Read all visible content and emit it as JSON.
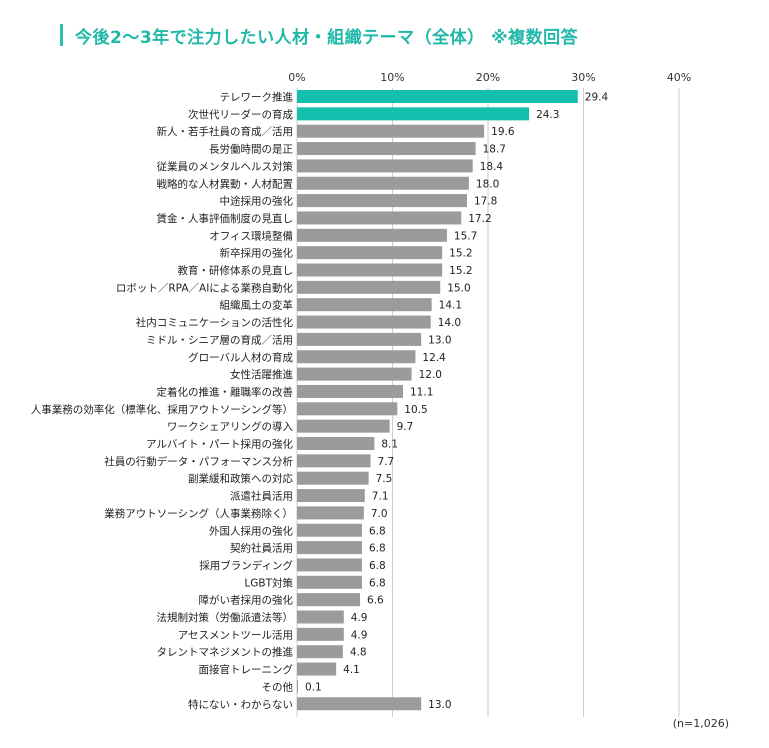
{
  "colors": {
    "title": "#20b8a8",
    "highlight": "#14bfae",
    "bar": "#9b9b9b",
    "grid": "#cccccc"
  },
  "title": "今後2～3年で注力したい人材・組織テーマ（全体） ※複数回答",
  "note": "(n=1,026)",
  "chart_data": {
    "type": "bar",
    "orientation": "horizontal",
    "xlim": [
      0,
      40
    ],
    "ticks": [
      0,
      10,
      20,
      30,
      40
    ],
    "tick_labels": [
      "0%",
      "10%",
      "20%",
      "30%",
      "40%"
    ],
    "grid": true,
    "categories": [
      "テレワーク推進",
      "次世代リーダーの育成",
      "新人・若手社員の育成／活用",
      "長労働時間の是正",
      "従業員のメンタルヘルス対策",
      "戦略的な人材異動・人材配置",
      "中途採用の強化",
      "賃金・人事評価制度の見直し",
      "オフィス環境整備",
      "新卒採用の強化",
      "教育・研修体系の見直し",
      "ロボット／RPA／AIによる業務自動化",
      "組織風土の変革",
      "社内コミュニケーションの活性化",
      "ミドル・シニア層の育成／活用",
      "グローバル人材の育成",
      "女性活躍推進",
      "定着化の推進・離職率の改善",
      "人事業務の効率化（標準化、採用アウトソーシング等）",
      "ワークシェアリングの導入",
      "アルバイト・パート採用の強化",
      "社員の行動データ・パフォーマンス分析",
      "副業緩和政策への対応",
      "派遣社員活用",
      "業務アウトソーシング（人事業務除く）",
      "外国人採用の強化",
      "契約社員活用",
      "採用ブランディング",
      "LGBT対策",
      "障がい者採用の強化",
      "法規制対策（労働派遣法等）",
      "アセスメントツール活用",
      "タレントマネジメントの推進",
      "面接官トレーニング",
      "その他",
      "特にない・わからない"
    ],
    "values": [
      29.4,
      24.3,
      19.6,
      18.7,
      18.4,
      18.0,
      17.8,
      17.2,
      15.7,
      15.2,
      15.2,
      15.0,
      14.1,
      14.0,
      13.0,
      12.4,
      12.0,
      11.1,
      10.5,
      9.7,
      8.1,
      7.7,
      7.5,
      7.1,
      7.0,
      6.8,
      6.8,
      6.8,
      6.8,
      6.6,
      4.9,
      4.9,
      4.8,
      4.1,
      0.1,
      13.0
    ],
    "value_labels": [
      "29.4",
      "24.3",
      "19.6",
      "18.7",
      "18.4",
      "18.0",
      "17.8",
      "17.2",
      "15.7",
      "15.2",
      "15.2",
      "15.0",
      "14.1",
      "14.0",
      "13.0",
      "12.4",
      "12.0",
      "11.1",
      "10.5",
      "9.7",
      "8.1",
      "7.7",
      "7.5",
      "7.1",
      "7.0",
      "6.8",
      "6.8",
      "6.8",
      "6.8",
      "6.6",
      "4.9",
      "4.9",
      "4.8",
      "4.1",
      "0.1",
      "13.0"
    ],
    "highlighted": [
      0,
      1
    ]
  }
}
